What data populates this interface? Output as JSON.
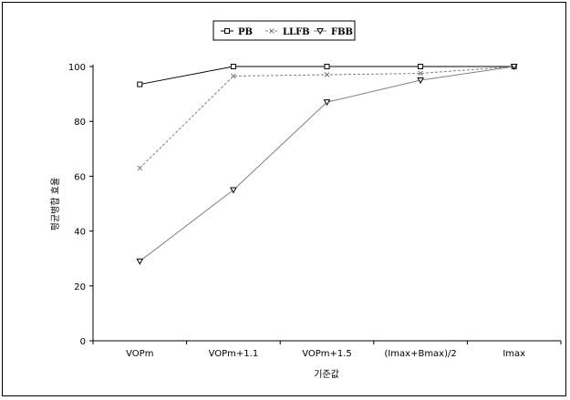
{
  "chart_data": {
    "type": "line",
    "title": "",
    "xlabel": "기준값",
    "ylabel": "평균병합 효율",
    "categories": [
      "VOPm",
      "VOPm+1.1",
      "VOPm+1.5",
      "(Imax+Bmax)/2",
      "Imax"
    ],
    "ylim": [
      0,
      100
    ],
    "yticks": [
      0,
      20,
      40,
      60,
      80,
      100
    ],
    "grid": false,
    "legend_position": "top-center",
    "series": [
      {
        "name": "PB",
        "marker": "square",
        "line": "solid",
        "color": "#000000",
        "values": [
          93.5,
          100,
          100,
          100,
          100
        ]
      },
      {
        "name": "LLFB",
        "marker": "x",
        "line": "dashed",
        "color": "#808080",
        "values": [
          63,
          96.5,
          97,
          97.5,
          100
        ]
      },
      {
        "name": "FBB",
        "marker": "triangle-down",
        "line": "solid",
        "color": "#808080",
        "values": [
          29,
          55,
          87,
          95,
          100
        ]
      }
    ]
  }
}
